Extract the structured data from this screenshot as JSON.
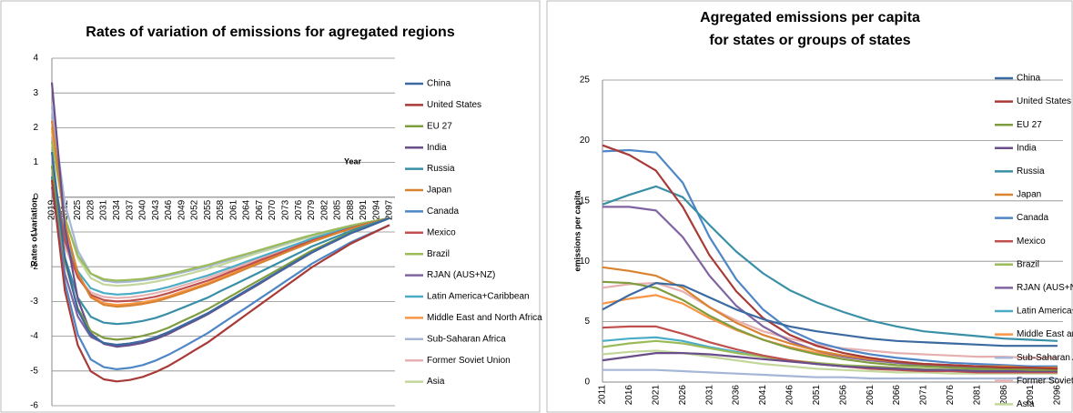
{
  "chart_data": [
    {
      "type": "line",
      "title": "Rates of variation of emissions for agregated regions",
      "x_label": "Year",
      "y_label": "Rates of variation",
      "categories": [
        "2019",
        "2022",
        "2025",
        "2028",
        "2031",
        "2034",
        "2037",
        "2040",
        "2043",
        "2046",
        "2049",
        "2052",
        "2055",
        "2058",
        "2061",
        "2064",
        "2067",
        "2070",
        "2073",
        "2076",
        "2079",
        "2082",
        "2085",
        "2088",
        "2091",
        "2094",
        "2097"
      ],
      "ylim": [
        -6,
        4
      ],
      "yticks": [
        -6,
        -5,
        -4,
        -3,
        -2,
        -1,
        0,
        1,
        2,
        3,
        4
      ],
      "grid": true,
      "series": [
        {
          "name": "China",
          "color": "#3b6aa0",
          "values": [
            1.3,
            -1.75,
            -3.25,
            -3.97,
            -4.19,
            -4.25,
            -4.21,
            -4.14,
            -4.03,
            -3.88,
            -3.7,
            -3.52,
            -3.34,
            -3.12,
            -2.9,
            -2.68,
            -2.46,
            -2.24,
            -2.02,
            -1.8,
            -1.59,
            -1.4,
            -1.22,
            -1.04,
            -0.89,
            -0.75,
            -0.6
          ]
        },
        {
          "name": "United States",
          "color": "#a83a37",
          "values": [
            0.5,
            -2.69,
            -4.26,
            -5.01,
            -5.24,
            -5.3,
            -5.26,
            -5.17,
            -5.03,
            -4.85,
            -4.63,
            -4.4,
            -4.18,
            -3.91,
            -3.64,
            -3.37,
            -3.1,
            -2.83,
            -2.56,
            -2.29,
            -2.02,
            -1.79,
            -1.57,
            -1.34,
            -1.16,
            -0.98,
            -0.8
          ]
        },
        {
          "name": "EU 27",
          "color": "#7f9c3f",
          "values": [
            0.9,
            -1.85,
            -3.2,
            -3.85,
            -4.05,
            -4.1,
            -4.06,
            -3.99,
            -3.89,
            -3.75,
            -3.57,
            -3.4,
            -3.22,
            -3.01,
            -2.8,
            -2.59,
            -2.38,
            -2.17,
            -1.96,
            -1.75,
            -1.54,
            -1.37,
            -1.19,
            -1.02,
            -0.88,
            -0.74,
            -0.6
          ]
        },
        {
          "name": "India",
          "color": "#6a4e8a",
          "values": [
            3.3,
            -0.88,
            -2.93,
            -3.92,
            -4.22,
            -4.3,
            -4.26,
            -4.19,
            -4.08,
            -3.93,
            -3.74,
            -3.56,
            -3.37,
            -3.15,
            -2.93,
            -2.71,
            -2.49,
            -2.26,
            -2.04,
            -1.82,
            -1.6,
            -1.41,
            -1.23,
            -1.04,
            -0.9,
            -0.75,
            -0.6
          ]
        },
        {
          "name": "Russia",
          "color": "#3990a6",
          "values": [
            0.6,
            -1.74,
            -2.89,
            -3.44,
            -3.61,
            -3.65,
            -3.62,
            -3.56,
            -3.47,
            -3.34,
            -3.19,
            -3.04,
            -2.89,
            -2.7,
            -2.52,
            -2.34,
            -2.16,
            -1.97,
            -1.79,
            -1.61,
            -1.42,
            -1.27,
            -1.12,
            -0.97,
            -0.84,
            -0.72,
            -0.6
          ]
        },
        {
          "name": "Japan",
          "color": "#d9822f",
          "values": [
            2.2,
            -0.74,
            -2.19,
            -2.88,
            -3.1,
            -3.15,
            -3.12,
            -3.07,
            -3.0,
            -2.89,
            -2.77,
            -2.64,
            -2.51,
            -2.36,
            -2.21,
            -2.05,
            -1.9,
            -1.75,
            -1.59,
            -1.44,
            -1.29,
            -1.16,
            -1.03,
            -0.91,
            -0.8,
            -0.7,
            -0.6
          ]
        },
        {
          "name": "Canada",
          "color": "#4f86c6",
          "values": [
            0.6,
            -2.45,
            -3.95,
            -4.67,
            -4.89,
            -4.95,
            -4.91,
            -4.83,
            -4.7,
            -4.53,
            -4.33,
            -4.12,
            -3.91,
            -3.66,
            -3.41,
            -3.17,
            -2.92,
            -2.67,
            -2.42,
            -2.17,
            -1.92,
            -1.71,
            -1.51,
            -1.3,
            -1.13,
            -0.97,
            -0.8
          ]
        },
        {
          "name": "Mexico",
          "color": "#c0504d",
          "values": [
            0.9,
            -1.25,
            -2.3,
            -2.81,
            -2.96,
            -3.0,
            -2.98,
            -2.93,
            -2.86,
            -2.76,
            -2.64,
            -2.52,
            -2.4,
            -2.26,
            -2.11,
            -1.97,
            -1.82,
            -1.68,
            -1.54,
            -1.39,
            -1.25,
            -1.13,
            -1.01,
            -0.89,
            -0.79,
            -0.7,
            -0.6
          ]
        },
        {
          "name": "Brazil",
          "color": "#9bbb59",
          "values": [
            1.6,
            -0.6,
            -1.68,
            -2.2,
            -2.36,
            -2.4,
            -2.38,
            -2.35,
            -2.29,
            -2.22,
            -2.13,
            -2.04,
            -1.95,
            -1.84,
            -1.73,
            -1.63,
            -1.52,
            -1.41,
            -1.3,
            -1.19,
            -1.09,
            -1.0,
            -0.91,
            -0.82,
            -0.74,
            -0.67,
            -0.6
          ]
        },
        {
          "name": "RJAN (AUS+NZ)",
          "color": "#8064a2",
          "values": [
            0.3,
            -2.2,
            -3.43,
            -4.02,
            -4.2,
            -4.25,
            -4.21,
            -4.14,
            -4.03,
            -3.88,
            -3.7,
            -3.52,
            -3.34,
            -3.12,
            -2.9,
            -2.68,
            -2.46,
            -2.24,
            -2.02,
            -1.8,
            -1.59,
            -1.4,
            -1.22,
            -1.04,
            -0.89,
            -0.75,
            -0.6
          ]
        },
        {
          "name": "Latin America+Caribbean",
          "color": "#4bacc6",
          "values": [
            0.9,
            -1.14,
            -2.13,
            -2.62,
            -2.76,
            -2.8,
            -2.78,
            -2.73,
            -2.67,
            -2.58,
            -2.47,
            -2.36,
            -2.25,
            -2.12,
            -1.99,
            -1.85,
            -1.72,
            -1.59,
            -1.46,
            -1.33,
            -1.19,
            -1.08,
            -0.97,
            -0.86,
            -0.78,
            -0.69,
            -0.6
          ]
        },
        {
          "name": "Middle East and North Africa",
          "color": "#f79646",
          "values": [
            2.0,
            -0.81,
            -2.18,
            -2.85,
            -3.05,
            -3.1,
            -3.07,
            -3.02,
            -2.95,
            -2.85,
            -2.72,
            -2.6,
            -2.47,
            -2.32,
            -2.17,
            -2.02,
            -1.87,
            -1.72,
            -1.57,
            -1.42,
            -1.27,
            -1.15,
            -1.02,
            -0.9,
            -0.8,
            -0.7,
            -0.6
          ]
        },
        {
          "name": "Sub-Saharan Africa",
          "color": "#a5b6d6",
          "values": [
            2.6,
            -0.18,
            -1.54,
            -2.2,
            -2.4,
            -2.45,
            -2.43,
            -2.39,
            -2.34,
            -2.26,
            -2.17,
            -2.08,
            -1.99,
            -1.88,
            -1.77,
            -1.65,
            -1.54,
            -1.43,
            -1.32,
            -1.21,
            -1.1,
            -1.01,
            -0.91,
            -0.82,
            -0.75,
            -0.67,
            -0.6
          ]
        },
        {
          "name": "Former Soviet Union",
          "color": "#e6b0b0",
          "values": [
            0.4,
            -1.42,
            -2.31,
            -2.74,
            -2.87,
            -2.9,
            -2.88,
            -2.83,
            -2.76,
            -2.67,
            -2.55,
            -2.44,
            -2.32,
            -2.19,
            -2.05,
            -1.91,
            -1.77,
            -1.63,
            -1.5,
            -1.36,
            -1.22,
            -1.11,
            -0.99,
            -0.88,
            -0.78,
            -0.69,
            -0.6
          ]
        },
        {
          "name": "Asia",
          "color": "#c3d69b",
          "values": [
            1.9,
            -0.55,
            -1.75,
            -2.33,
            -2.51,
            -2.55,
            -2.53,
            -2.49,
            -2.43,
            -2.35,
            -2.26,
            -2.16,
            -2.06,
            -1.95,
            -1.83,
            -1.71,
            -1.59,
            -1.48,
            -1.36,
            -1.24,
            -1.13,
            -1.03,
            -0.93,
            -0.83,
            -0.76,
            -0.68,
            -0.6
          ]
        }
      ]
    },
    {
      "type": "line",
      "title": [
        "Agregated emissions per capita",
        "for states or groups of states"
      ],
      "y_label": "emissions per capita",
      "categories": [
        "2011",
        "2016",
        "2021",
        "2026",
        "2031",
        "2036",
        "2041",
        "2046",
        "2051",
        "2056",
        "2061",
        "2066",
        "2071",
        "2076",
        "2081",
        "2086",
        "2091",
        "2096"
      ],
      "ylim": [
        0,
        25
      ],
      "yticks": [
        0,
        5,
        10,
        15,
        20,
        25
      ],
      "grid": true,
      "series": [
        {
          "name": "China",
          "color": "#3b6aa0",
          "values": [
            6.0,
            7.2,
            8.2,
            8.0,
            7.0,
            6.0,
            5.2,
            4.6,
            4.2,
            3.9,
            3.6,
            3.4,
            3.3,
            3.2,
            3.1,
            3.0,
            3.0,
            3.0
          ]
        },
        {
          "name": "United States",
          "color": "#a83a37",
          "values": [
            19.6,
            18.8,
            17.5,
            14.5,
            10.5,
            7.5,
            5.3,
            3.9,
            3.0,
            2.4,
            2.0,
            1.7,
            1.5,
            1.4,
            1.3,
            1.2,
            1.2,
            1.1
          ]
        },
        {
          "name": "EU 27",
          "color": "#7f9c3f",
          "values": [
            8.3,
            8.2,
            7.8,
            6.8,
            5.5,
            4.4,
            3.5,
            2.8,
            2.3,
            1.9,
            1.6,
            1.4,
            1.3,
            1.2,
            1.1,
            1.1,
            1.0,
            1.0
          ]
        },
        {
          "name": "India",
          "color": "#6a4e8a",
          "values": [
            1.8,
            2.1,
            2.4,
            2.4,
            2.3,
            2.1,
            1.9,
            1.7,
            1.5,
            1.3,
            1.2,
            1.1,
            1.0,
            1.0,
            0.9,
            0.9,
            0.9,
            0.9
          ]
        },
        {
          "name": "Russia",
          "color": "#3990a6",
          "values": [
            14.7,
            15.5,
            16.2,
            15.3,
            13.0,
            10.8,
            9.0,
            7.6,
            6.6,
            5.8,
            5.1,
            4.6,
            4.2,
            4.0,
            3.8,
            3.6,
            3.5,
            3.4
          ]
        },
        {
          "name": "Japan",
          "color": "#d9822f",
          "values": [
            9.5,
            9.2,
            8.8,
            7.8,
            6.2,
            4.9,
            3.9,
            3.2,
            2.6,
            2.2,
            1.9,
            1.7,
            1.5,
            1.4,
            1.3,
            1.3,
            1.2,
            1.2
          ]
        },
        {
          "name": "Canada",
          "color": "#4f86c6",
          "values": [
            19.1,
            19.2,
            19.0,
            16.5,
            12.0,
            8.5,
            6.0,
            4.3,
            3.3,
            2.7,
            2.3,
            2.0,
            1.8,
            1.6,
            1.5,
            1.4,
            1.3,
            1.3
          ]
        },
        {
          "name": "Mexico",
          "color": "#c0504d",
          "values": [
            4.5,
            4.6,
            4.6,
            4.0,
            3.3,
            2.7,
            2.2,
            1.8,
            1.5,
            1.3,
            1.1,
            1.0,
            0.9,
            0.9,
            0.8,
            0.8,
            0.8,
            0.8
          ]
        },
        {
          "name": "Brazil",
          "color": "#9bbb59",
          "values": [
            2.9,
            3.2,
            3.4,
            3.2,
            2.8,
            2.4,
            2.1,
            1.8,
            1.6,
            1.4,
            1.3,
            1.2,
            1.1,
            1.0,
            1.0,
            1.0,
            0.9,
            0.9
          ]
        },
        {
          "name": "RJAN (AUS+NZ)",
          "color": "#8064a2",
          "values": [
            14.5,
            14.5,
            14.2,
            12.0,
            8.8,
            6.3,
            4.6,
            3.4,
            2.6,
            2.1,
            1.8,
            1.6,
            1.4,
            1.3,
            1.2,
            1.2,
            1.1,
            1.1
          ]
        },
        {
          "name": "Latin America+Caribbean",
          "color": "#4bacc6",
          "values": [
            3.4,
            3.6,
            3.7,
            3.4,
            2.9,
            2.5,
            2.1,
            1.8,
            1.5,
            1.3,
            1.2,
            1.1,
            1.0,
            0.9,
            0.9,
            0.9,
            0.8,
            0.8
          ]
        },
        {
          "name": "Middle East and North Africa",
          "color": "#f79646",
          "values": [
            6.5,
            6.9,
            7.2,
            6.5,
            5.3,
            4.3,
            3.5,
            2.9,
            2.4,
            2.1,
            1.8,
            1.6,
            1.5,
            1.4,
            1.3,
            1.3,
            1.2,
            1.2
          ]
        },
        {
          "name": "Sub-Saharan Africa",
          "color": "#a5b6d6",
          "values": [
            1.0,
            1.0,
            1.0,
            0.9,
            0.8,
            0.7,
            0.6,
            0.5,
            0.4,
            0.4,
            0.3,
            0.3,
            0.3,
            0.3,
            0.3,
            0.3,
            0.3,
            0.3
          ]
        },
        {
          "name": "Former Soviet Union",
          "color": "#e6b0b0",
          "values": [
            7.8,
            8.1,
            8.2,
            7.5,
            6.2,
            5.1,
            4.2,
            3.6,
            3.1,
            2.8,
            2.6,
            2.4,
            2.3,
            2.2,
            2.1,
            2.1,
            2.0,
            2.0
          ]
        },
        {
          "name": "Asia",
          "color": "#c3d69b",
          "values": [
            2.3,
            2.5,
            2.6,
            2.4,
            2.1,
            1.8,
            1.5,
            1.3,
            1.1,
            1.0,
            0.9,
            0.8,
            0.8,
            0.7,
            0.7,
            0.7,
            0.7,
            0.7
          ]
        }
      ]
    }
  ]
}
